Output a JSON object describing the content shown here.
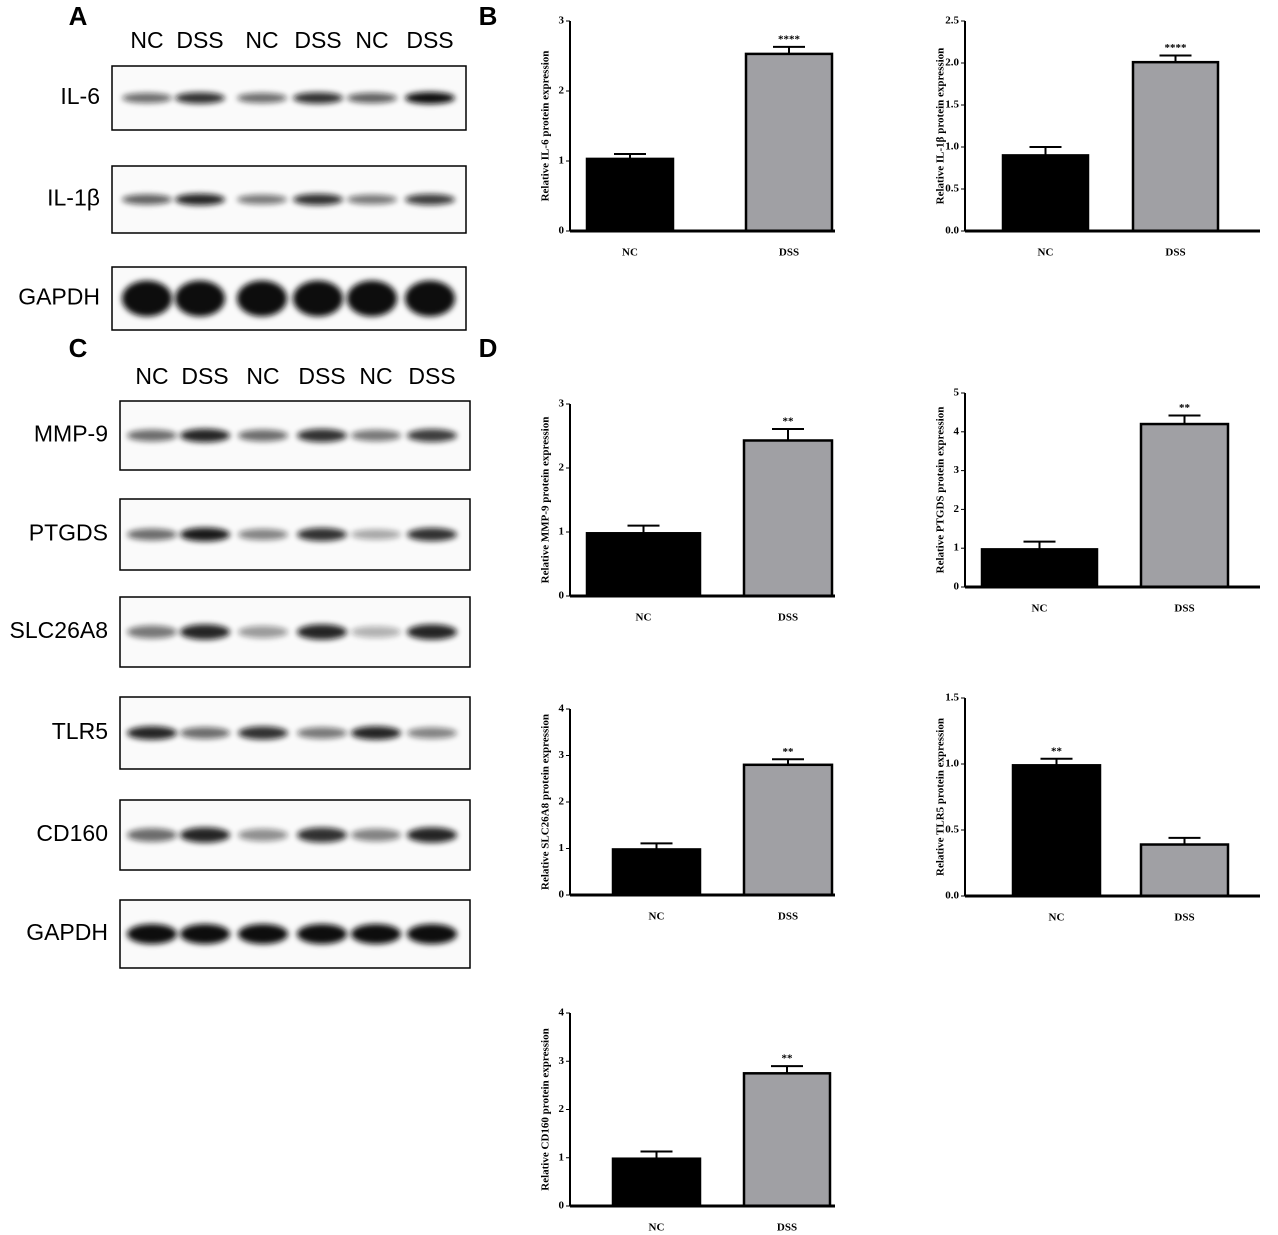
{
  "panels": {
    "a": "A",
    "b": "B",
    "c": "C",
    "d": "D"
  },
  "blot_a": {
    "lanes": [
      "NC",
      "DSS",
      "NC",
      "DSS",
      "NC",
      "DSS"
    ],
    "rows": [
      "IL-6",
      "IL-1β",
      "GAPDH"
    ]
  },
  "blot_c": {
    "lanes": [
      "NC",
      "DSS",
      "NC",
      "DSS",
      "NC",
      "DSS"
    ],
    "rows": [
      "MMP-9",
      "PTGDS",
      "SLC26A8",
      "TLR5",
      "CD160",
      "GAPDH"
    ]
  },
  "chart_data": [
    {
      "type": "bar",
      "ylabel": "Relative IL-6 protein expression",
      "categories": [
        "NC",
        "DSS"
      ],
      "values": [
        1.03,
        2.53
      ],
      "errors": [
        0.07,
        0.1
      ],
      "colors": [
        "#000000",
        "#a0a0a4"
      ],
      "ylim": [
        0,
        3
      ],
      "yticks": [
        0,
        1,
        2,
        3
      ],
      "annotation": {
        "text": "****",
        "category": "DSS"
      }
    },
    {
      "type": "bar",
      "ylabel": "Relative IL-1β protein expression",
      "categories": [
        "NC",
        "DSS"
      ],
      "values": [
        0.9,
        2.01
      ],
      "errors": [
        0.1,
        0.08
      ],
      "colors": [
        "#000000",
        "#a0a0a4"
      ],
      "ylim": [
        0,
        2.5
      ],
      "yticks": [
        {
          "value": 0,
          "label": "0.0"
        },
        0.5,
        {
          "value": 1,
          "label": "1.0"
        },
        1.5,
        {
          "value": 2,
          "label": "2.0"
        },
        2.5
      ],
      "annotation": {
        "text": "****",
        "category": "DSS"
      }
    },
    {
      "type": "bar",
      "ylabel": "Relative MMP-9 protein expression",
      "categories": [
        "NC",
        "DSS"
      ],
      "values": [
        0.98,
        2.43
      ],
      "errors": [
        0.12,
        0.18
      ],
      "colors": [
        "#000000",
        "#a0a0a4"
      ],
      "ylim": [
        0,
        3
      ],
      "yticks": [
        0,
        1,
        2,
        3
      ],
      "annotation": {
        "text": "**",
        "category": "DSS"
      }
    },
    {
      "type": "bar",
      "ylabel": "Relative PTGDS protein expression",
      "categories": [
        "NC",
        "DSS"
      ],
      "values": [
        0.97,
        4.2
      ],
      "errors": [
        0.2,
        0.22
      ],
      "colors": [
        "#000000",
        "#a0a0a4"
      ],
      "ylim": [
        0,
        5
      ],
      "yticks": [
        0,
        1,
        2,
        3,
        4,
        5
      ],
      "annotation": {
        "text": "**",
        "category": "DSS"
      }
    },
    {
      "type": "bar",
      "ylabel": "Relative SLC26A8 protein expression",
      "categories": [
        "NC",
        "DSS"
      ],
      "values": [
        0.98,
        2.8
      ],
      "errors": [
        0.13,
        0.12
      ],
      "colors": [
        "#000000",
        "#a0a0a4"
      ],
      "ylim": [
        0,
        4
      ],
      "yticks": [
        0,
        1,
        2,
        3,
        4
      ],
      "annotation": {
        "text": "**",
        "category": "DSS"
      }
    },
    {
      "type": "bar",
      "ylabel": "Relative TLR5 protein expression",
      "categories": [
        "NC",
        "DSS"
      ],
      "values": [
        0.99,
        0.39
      ],
      "errors": [
        0.05,
        0.05
      ],
      "colors": [
        "#000000",
        "#a0a0a4"
      ],
      "ylim": [
        0,
        1.5
      ],
      "yticks": [
        {
          "value": 0,
          "label": "0.0"
        },
        0.5,
        {
          "value": 1,
          "label": "1.0"
        },
        1.5
      ],
      "annotation": {
        "text": "**",
        "category": "NC"
      }
    },
    {
      "type": "bar",
      "ylabel": "Relative CD160 protein expression",
      "categories": [
        "NC",
        "DSS"
      ],
      "values": [
        0.98,
        2.75
      ],
      "errors": [
        0.15,
        0.15
      ],
      "colors": [
        "#000000",
        "#a0a0a4"
      ],
      "ylim": [
        0,
        4
      ],
      "yticks": [
        0,
        1,
        2,
        3,
        4
      ],
      "annotation": {
        "text": "**",
        "category": "DSS"
      }
    }
  ]
}
